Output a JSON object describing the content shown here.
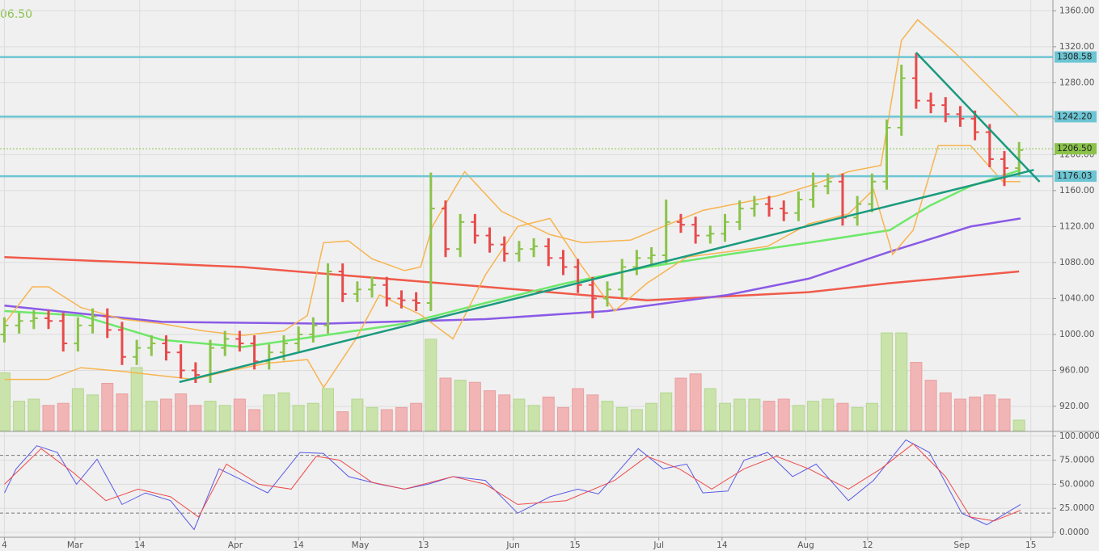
{
  "chart_data": {
    "type": "ohlc",
    "corner_text": "06.50",
    "corner_color": "#8bc34a",
    "xlim": [
      -0.3,
      71.3
    ],
    "xticks": [
      {
        "value": 0,
        "label": "4"
      },
      {
        "value": 4.8,
        "label": "Mar"
      },
      {
        "value": 9.2,
        "label": "14"
      },
      {
        "value": 15.7,
        "label": "Apr"
      },
      {
        "value": 20,
        "label": "14"
      },
      {
        "value": 24.2,
        "label": "May"
      },
      {
        "value": 28.5,
        "label": "13"
      },
      {
        "value": 34.6,
        "label": "Jun"
      },
      {
        "value": 38.8,
        "label": "15"
      },
      {
        "value": 44.5,
        "label": "Jul"
      },
      {
        "value": 48.8,
        "label": "14"
      },
      {
        "value": 54.5,
        "label": "Aug"
      },
      {
        "value": 58.7,
        "label": "12"
      },
      {
        "value": 65.1,
        "label": "Sep"
      },
      {
        "value": 69.8,
        "label": "15"
      }
    ],
    "ylim": [
      893,
      1372
    ],
    "yticks": [
      {
        "value": 920,
        "label": "920.00"
      },
      {
        "value": 960,
        "label": "960.00"
      },
      {
        "value": 1000,
        "label": "1000.00"
      },
      {
        "value": 1040,
        "label": "1040.00"
      },
      {
        "value": 1080,
        "label": "1080.00"
      },
      {
        "value": 1120,
        "label": "1120.00"
      },
      {
        "value": 1160,
        "label": "1160.00"
      },
      {
        "value": 1200,
        "label": "1200.00"
      },
      {
        "value": 1240,
        "label": "1240.00"
      },
      {
        "value": 1280,
        "label": "1280.00"
      },
      {
        "value": 1320,
        "label": "1320.00"
      },
      {
        "value": 1360,
        "label": "1360.00"
      }
    ],
    "grid": true,
    "up_color": "#8bc34a",
    "down_color": "#e84a4a",
    "open": [
      1000,
      1010,
      1015,
      1018,
      1015,
      990,
      1010,
      1020,
      1005,
      975,
      985,
      990,
      980,
      960,
      955,
      985,
      995,
      990,
      970,
      980,
      990,
      1000,
      1010,
      1070,
      1045,
      1050,
      1055,
      1040,
      1038,
      1035,
      1140,
      1095,
      1125,
      1110,
      1100,
      1090,
      1095,
      1098,
      1085,
      1075,
      1055,
      1040,
      1050,
      1075,
      1085,
      1088,
      1125,
      1122,
      1110,
      1112,
      1125,
      1140,
      1145,
      1140,
      1135,
      1150,
      1165,
      1170,
      1130,
      1145,
      1170,
      1230,
      1285,
      1260,
      1255,
      1245,
      1240,
      1225,
      1195,
      1185
    ],
    "high": [
      1019,
      1024,
      1027,
      1027,
      1024,
      1019,
      1029,
      1029,
      1014,
      994,
      999,
      999,
      989,
      969,
      994,
      1004,
      1004,
      999,
      989,
      999,
      1009,
      1019,
      1079,
      1079,
      1059,
      1064,
      1064,
      1049,
      1047,
      1180,
      1149,
      1134,
      1134,
      1119,
      1109,
      1104,
      1107,
      1107,
      1094,
      1084,
      1064,
      1059,
      1084,
      1094,
      1097,
      1150,
      1134,
      1131,
      1121,
      1134,
      1149,
      1154,
      1154,
      1149,
      1159,
      1180,
      1179,
      1179,
      1154,
      1179,
      1239,
      1300,
      1313,
      1269,
      1264,
      1254,
      1249,
      1234,
      1204,
      1214
    ],
    "low": [
      991,
      1001,
      1006,
      1006,
      981,
      981,
      1001,
      996,
      966,
      966,
      976,
      971,
      951,
      946,
      946,
      976,
      981,
      961,
      961,
      971,
      981,
      991,
      1001,
      1036,
      1036,
      1041,
      1031,
      1029,
      1026,
      1026,
      1086,
      1086,
      1101,
      1091,
      1081,
      1081,
      1086,
      1076,
      1066,
      1046,
      1018,
      1031,
      1041,
      1066,
      1076,
      1079,
      1113,
      1101,
      1101,
      1103,
      1116,
      1131,
      1131,
      1126,
      1126,
      1141,
      1156,
      1121,
      1121,
      1136,
      1161,
      1221,
      1251,
      1246,
      1236,
      1231,
      1216,
      1186,
      1165,
      1176
    ],
    "close": [
      1010,
      1015,
      1018,
      1015,
      990,
      1010,
      1020,
      1005,
      975,
      985,
      990,
      980,
      960,
      955,
      985,
      995,
      990,
      970,
      980,
      990,
      1000,
      1010,
      1070,
      1045,
      1050,
      1055,
      1040,
      1038,
      1035,
      1140,
      1095,
      1125,
      1110,
      1100,
      1090,
      1095,
      1098,
      1085,
      1075,
      1055,
      1040,
      1050,
      1075,
      1085,
      1088,
      1125,
      1122,
      1110,
      1112,
      1125,
      1140,
      1145,
      1140,
      1135,
      1150,
      1165,
      1170,
      1130,
      1145,
      1170,
      1230,
      1285,
      1260,
      1255,
      1245,
      1240,
      1225,
      1195,
      1185,
      1205
    ],
    "volume": [
      55,
      28,
      30,
      24,
      26,
      40,
      34,
      45,
      35,
      60,
      28,
      30,
      35,
      24,
      28,
      24,
      30,
      20,
      34,
      36,
      24,
      26,
      40,
      18,
      30,
      22,
      20,
      22,
      26,
      87,
      50,
      48,
      46,
      38,
      34,
      30,
      24,
      32,
      22,
      40,
      34,
      28,
      22,
      20,
      26,
      36,
      50,
      54,
      40,
      26,
      30,
      30,
      28,
      30,
      24,
      28,
      30,
      26,
      22,
      26,
      93,
      93,
      65,
      48,
      36,
      30,
      32,
      34,
      30,
      10
    ],
    "volume_ylim": [
      0,
      100
    ],
    "volume_up_color": "#c9e3ab",
    "volume_down_color": "#f2b5b5",
    "lines": [
      {
        "color": "#f05a4a",
        "x": [
          0,
          16.2,
          32.7,
          43.7,
          54.7,
          60.2,
          69.0
        ],
        "values": [
          1086,
          1075,
          1053,
          1038,
          1047,
          1057,
          1070
        ]
      },
      {
        "color": "#8a5ae6",
        "x": [
          0,
          10.7,
          21.7,
          32.7,
          41.0,
          49.2,
          54.7,
          60.2,
          65.7,
          69.1
        ],
        "values": [
          1032,
          1014,
          1012,
          1017,
          1026,
          1044,
          1062,
          1092,
          1120,
          1129
        ]
      },
      {
        "color": "#6ee86a",
        "x": [
          0,
          5.2,
          10.7,
          16.2,
          21.7,
          27.2,
          32.7,
          38.2,
          43.7,
          49.2,
          54.7,
          60.2,
          62.9,
          65.7,
          69.1
        ],
        "values": [
          1026,
          1021,
          994,
          986,
          999,
          1012,
          1035,
          1057,
          1075,
          1089,
          1102,
          1116,
          1143,
          1165,
          1183
        ]
      },
      {
        "color": "#f7b450",
        "x": [
          0,
          1.9,
          3.0,
          5.2,
          8.0,
          10.7,
          13.5,
          16.2,
          19.0,
          20.6,
          21.7,
          23.4,
          25.0,
          27.2,
          28.3,
          29.1,
          31.3,
          33.8,
          37.1,
          39.3,
          42.6,
          44.8,
          47.5,
          50.3,
          52.5,
          54.7,
          57.4,
          59.6,
          61.0,
          62.1,
          64.6,
          66.8,
          69.0
        ],
        "values": [
          1012,
          1053,
          1053,
          1030,
          1017,
          1012,
          1004,
          999,
          1004,
          1021,
          1102,
          1104,
          1084,
          1071,
          1075,
          1120,
          1181,
          1137,
          1111,
          1102,
          1105,
          1120,
          1138,
          1147,
          1154,
          1165,
          1181,
          1188,
          1327,
          1350,
          1314,
          1278,
          1242
        ]
      },
      {
        "color": "#f7b450",
        "x": [
          0,
          3.0,
          5.2,
          8.0,
          10.7,
          12.9,
          15.1,
          17.9,
          20.6,
          21.7,
          23.9,
          25.5,
          28.3,
          30.5,
          32.7,
          34.9,
          37.1,
          39.3,
          41.5,
          43.7,
          46.4,
          49.2,
          51.9,
          54.7,
          57.4,
          59.1,
          60.4,
          61.8,
          63.5,
          65.7,
          67.9,
          69.1
        ],
        "values": [
          950,
          950,
          963,
          959,
          954,
          950,
          959,
          968,
          972,
          941,
          995,
          1044,
          1022,
          995,
          1066,
          1120,
          1129,
          1075,
          1026,
          1057,
          1086,
          1092,
          1098,
          1123,
          1134,
          1161,
          1089,
          1116,
          1210,
          1210,
          1170,
          1170
        ]
      }
    ],
    "trendlines": [
      {
        "color": "#1a9a7f",
        "x": [
          11.9,
          70.0
        ],
        "values": [
          947,
          1183
        ]
      },
      {
        "color": "#1a9a7f",
        "x": [
          62.0,
          70.4
        ],
        "values": [
          1313.6,
          1169.8
        ]
      }
    ],
    "levels": [
      {
        "value": 1308.58,
        "label": "1308.58",
        "color": "#6cc5d3"
      },
      {
        "value": 1242.2,
        "label": "1242.20",
        "color": "#6cc5d3"
      },
      {
        "value": 1176.03,
        "label": "1176.03",
        "color": "#6cc5d3"
      },
      {
        "value": 1206.5,
        "label": "1206.50",
        "color": "#8bc34a",
        "dotted": true
      }
    ],
    "osc_ylim": [
      -5,
      104
    ],
    "osc_yticks": [
      {
        "value": 0,
        "label": "0.0000"
      },
      {
        "value": 25,
        "label": "25.0000"
      },
      {
        "value": 50,
        "label": "50.0000"
      },
      {
        "value": 75,
        "label": "75.0000"
      },
      {
        "value": 100,
        "label": "100.0000"
      }
    ],
    "osc_bands": [
      80,
      20
    ],
    "osc_series": [
      {
        "color": "#5a5ae6",
        "x": [
          0,
          0.8,
          2.2,
          3.6,
          4.9,
          6.3,
          8.0,
          9.6,
          11.3,
          12.9,
          14.6,
          16.2,
          17.9,
          20.1,
          21.7,
          23.4,
          25.5,
          27.2,
          28.8,
          30.5,
          32.7,
          34.9,
          37.1,
          39.0,
          40.4,
          43.1,
          44.8,
          46.4,
          47.5,
          49.2,
          50.3,
          51.9,
          53.6,
          55.2,
          57.4,
          59.1,
          61.3,
          62.9,
          65.1,
          66.8,
          69.1
        ],
        "values": [
          41,
          66,
          90,
          83,
          50,
          76,
          29,
          41,
          33,
          3,
          66,
          54,
          41,
          83,
          82,
          58,
          50,
          45,
          50,
          58,
          54,
          20,
          37,
          45,
          40,
          87,
          66,
          71,
          41,
          43,
          75,
          83,
          58,
          71,
          33,
          54,
          96,
          83,
          20,
          8,
          29
        ]
      },
      {
        "color": "#ee4a4a",
        "x": [
          0,
          2.5,
          4.7,
          6.9,
          9.1,
          11.3,
          13.2,
          15.1,
          17.3,
          19.5,
          21.2,
          22.8,
          25.0,
          27.2,
          30.5,
          32.7,
          34.9,
          38.2,
          41.5,
          43.7,
          45.9,
          48.1,
          50.3,
          52.5,
          54.7,
          57.4,
          59.6,
          61.8,
          64.0,
          65.7,
          67.3,
          69.1
        ],
        "values": [
          50,
          87,
          62,
          33,
          45,
          37,
          16,
          71,
          50,
          45,
          79,
          75,
          52,
          45,
          58,
          50,
          29,
          33,
          54,
          79,
          66,
          45,
          66,
          79,
          66,
          45,
          66,
          92,
          58,
          16,
          12,
          23
        ]
      }
    ]
  }
}
